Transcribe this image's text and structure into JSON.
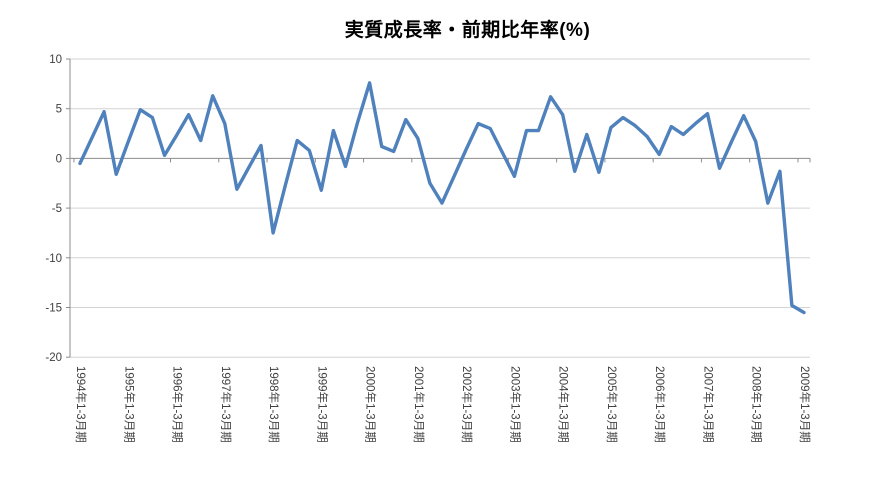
{
  "chart_data": {
    "type": "line",
    "title": "実質成長率・前期比年率(%)",
    "frequency": "quarterly",
    "x_start": "1994Q1",
    "x_end": "2009Q1",
    "x_tick_labels": [
      "1994年1-3月期",
      "1995年1-3月期",
      "1996年1-3月期",
      "1997年1-3月期",
      "1998年1-3月期",
      "1999年1-3月期",
      "2000年1-3月期",
      "2001年1-3月期",
      "2002年1-3月期",
      "2003年1-3月期",
      "2004年1-3月期",
      "2005年1-3月期",
      "2006年1-3月期",
      "2007年1-3月期",
      "2008年1-3月期",
      "2009年1-3月期"
    ],
    "series": [
      {
        "name": "実質成長率・前期比年率",
        "values": [
          -0.5,
          2.1,
          4.7,
          -1.6,
          1.7,
          4.9,
          4.1,
          0.3,
          2.3,
          4.4,
          1.8,
          6.3,
          3.5,
          -3.1,
          -0.9,
          1.3,
          -7.5,
          -2.8,
          1.8,
          0.8,
          -3.2,
          2.8,
          -0.8,
          3.6,
          7.6,
          1.2,
          0.7,
          3.9,
          2.0,
          -2.5,
          -4.5,
          -1.8,
          0.9,
          3.5,
          3.0,
          0.6,
          -1.8,
          2.8,
          2.8,
          6.2,
          4.4,
          -1.3,
          2.4,
          -1.4,
          3.1,
          4.1,
          3.3,
          2.2,
          0.4,
          3.2,
          2.4,
          3.5,
          4.5,
          -1.0,
          1.7,
          4.3,
          1.7,
          -4.5,
          -1.3,
          -14.8,
          -15.5
        ]
      }
    ],
    "y_ticks": [
      10,
      5,
      0,
      -5,
      -10,
      -15,
      -20
    ],
    "ylim": [
      -20,
      10
    ],
    "grid": "horizontal",
    "legend": "none",
    "line_color": "#4F81BD",
    "gridline_color": "#D3D3D3",
    "axis_color": "#8C8C8C",
    "label_color": "#404040",
    "background": "#FFFFFF"
  }
}
